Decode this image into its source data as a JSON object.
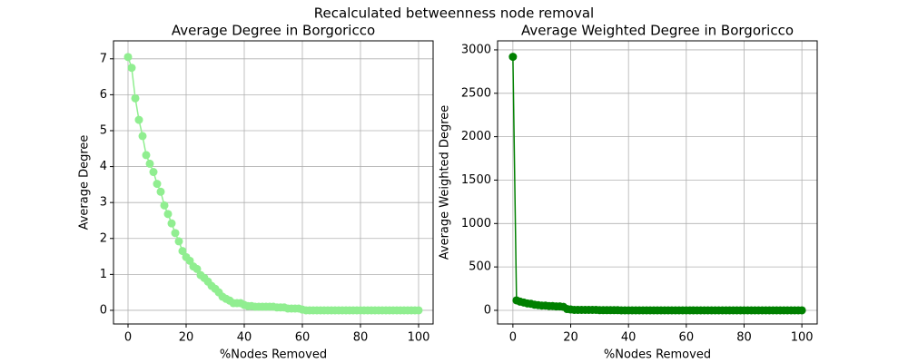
{
  "title": "Recalculated betweenness node removal",
  "chart_data": [
    {
      "type": "line",
      "title": "Average Degree in Borgoricco",
      "xlabel": "%Nodes Removed",
      "ylabel": "Average Degree",
      "x": [
        0,
        1.25,
        2.5,
        3.75,
        5,
        6.25,
        7.5,
        8.75,
        10,
        11.25,
        12.5,
        13.75,
        15,
        16.25,
        17.5,
        18.75,
        20,
        21.25,
        22.5,
        23.75,
        25,
        26.25,
        27.5,
        28.75,
        30,
        31.25,
        32.5,
        33.75,
        35,
        36.25,
        37.5,
        38.75,
        40,
        41.25,
        42.5,
        43.75,
        45,
        46.25,
        47.5,
        48.75,
        50,
        51.25,
        52.5,
        53.75,
        55,
        56.25,
        57.5,
        58.75,
        60,
        61.25,
        62.5,
        63.75,
        65,
        66.25,
        67.5,
        68.75,
        70,
        71.25,
        72.5,
        73.75,
        75,
        76.25,
        77.5,
        78.75,
        80,
        81.25,
        82.5,
        83.75,
        85,
        86.25,
        87.5,
        88.75,
        90,
        91.25,
        92.5,
        93.75,
        95,
        96.25,
        97.5,
        98.75,
        100
      ],
      "series": [
        {
          "color": "#90ee90",
          "values": [
            7.05,
            6.75,
            5.9,
            5.3,
            4.85,
            4.32,
            4.08,
            3.85,
            3.52,
            3.3,
            2.92,
            2.68,
            2.42,
            2.15,
            1.92,
            1.65,
            1.48,
            1.38,
            1.22,
            1.15,
            0.98,
            0.9,
            0.8,
            0.68,
            0.6,
            0.5,
            0.38,
            0.32,
            0.27,
            0.2,
            0.2,
            0.2,
            0.15,
            0.12,
            0.12,
            0.1,
            0.1,
            0.1,
            0.1,
            0.1,
            0.1,
            0.08,
            0.08,
            0.08,
            0.05,
            0.05,
            0.05,
            0.05,
            0.02,
            0,
            0,
            0,
            0,
            0,
            0,
            0,
            0,
            0,
            0,
            0,
            0,
            0,
            0,
            0,
            0,
            0,
            0,
            0,
            0,
            0,
            0,
            0,
            0,
            0,
            0,
            0,
            0,
            0,
            0,
            0,
            0
          ]
        }
      ],
      "xlim": [
        -5,
        105
      ],
      "xticks": [
        0,
        20,
        40,
        60,
        80,
        100
      ],
      "ylim": [
        -0.38,
        7.5
      ],
      "yticks": [
        0,
        1,
        2,
        3,
        4,
        5,
        6,
        7
      ],
      "grid": true
    },
    {
      "type": "line",
      "title": "Average Weighted Degree in Borgoricco",
      "xlabel": "%Nodes Removed",
      "ylabel": "Average Weighted Degree",
      "x": [
        0,
        1.25,
        2.5,
        3.75,
        5,
        6.25,
        7.5,
        8.75,
        10,
        11.25,
        12.5,
        13.75,
        15,
        16.25,
        17.5,
        18.75,
        20,
        21.25,
        22.5,
        23.75,
        25,
        26.25,
        27.5,
        28.75,
        30,
        31.25,
        32.5,
        33.75,
        35,
        36.25,
        37.5,
        38.75,
        40,
        41.25,
        42.5,
        43.75,
        45,
        46.25,
        47.5,
        48.75,
        50,
        51.25,
        52.5,
        53.75,
        55,
        56.25,
        57.5,
        58.75,
        60,
        61.25,
        62.5,
        63.75,
        65,
        66.25,
        67.5,
        68.75,
        70,
        71.25,
        72.5,
        73.75,
        75,
        76.25,
        77.5,
        78.75,
        80,
        81.25,
        82.5,
        83.75,
        85,
        86.25,
        87.5,
        88.75,
        90,
        91.25,
        92.5,
        93.75,
        95,
        96.25,
        97.5,
        98.75,
        100
      ],
      "series": [
        {
          "color": "#008000",
          "values": [
            2920,
            115,
            100,
            90,
            80,
            75,
            65,
            60,
            55,
            55,
            50,
            50,
            45,
            45,
            40,
            15,
            10,
            5,
            5,
            5,
            5,
            5,
            5,
            5,
            2,
            2,
            2,
            2,
            2,
            2,
            0,
            0,
            0,
            0,
            0,
            0,
            0,
            0,
            0,
            0,
            0,
            0,
            0,
            0,
            0,
            0,
            0,
            0,
            0,
            0,
            0,
            0,
            0,
            0,
            0,
            0,
            0,
            0,
            0,
            0,
            0,
            0,
            0,
            0,
            0,
            0,
            0,
            0,
            0,
            0,
            0,
            0,
            0,
            0,
            0,
            0,
            0,
            0,
            0,
            0,
            0
          ]
        }
      ],
      "xlim": [
        -5.3,
        105.3
      ],
      "xticks": [
        0,
        20,
        40,
        60,
        80,
        100
      ],
      "ylim": [
        -157,
        3104
      ],
      "yticks": [
        0,
        500,
        1000,
        1500,
        2000,
        2500,
        3000
      ],
      "grid": true
    }
  ]
}
